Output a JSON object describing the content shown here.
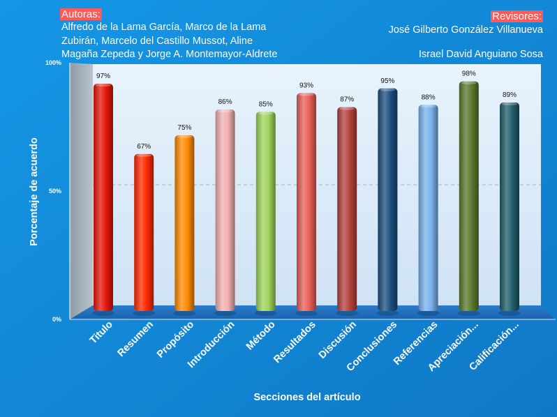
{
  "header": {
    "authors_title": "Autoras:",
    "authors_names": "Alfredo de la Lama García, Marco de la Lama Zubirán, Marcelo del Castillo Mussot, Aline Magaña Zepeda y Jorge A. Montemayor-Aldrete",
    "reviewers_title": "Revisores:",
    "reviewers": [
      "José Gilberto González Villanueva",
      "Israel David Anguiano Sosa"
    ]
  },
  "colors": {
    "background": "#1287d8",
    "back_wall": "#dcecfa",
    "side_wall": "#a8b3bd",
    "floor": "#1e6fc0",
    "bars": [
      "#e3170a",
      "#ff2a00",
      "#ff8a00",
      "#f2b0b0",
      "#9fd45c",
      "#e8605a",
      "#b5413d",
      "#1d4e80",
      "#79b2ec",
      "#5b7a2e",
      "#205e6a"
    ]
  },
  "chart_data": {
    "type": "bar",
    "title": "",
    "xlabel": "Secciones del artículo",
    "ylabel": "Porcentaje de acuerdo",
    "categories": [
      "Titulo",
      "Resumen",
      "Propósito",
      "Introducción",
      "Método",
      "Resultados",
      "Discusión",
      "Conclusiones",
      "Referencias",
      "Apreciación...",
      "Calificación..."
    ],
    "values": [
      97,
      67,
      75,
      86,
      85,
      93,
      87,
      95,
      88,
      98,
      89
    ],
    "value_labels": [
      "97%",
      "67%",
      "75%",
      "86%",
      "85%",
      "93%",
      "87%",
      "95%",
      "88%",
      "98%",
      "89%"
    ],
    "yticks": [
      {
        "value": 0,
        "label": "0%"
      },
      {
        "value": 50,
        "label": "50%"
      },
      {
        "value": 100,
        "label": "100%"
      }
    ],
    "ylim": [
      0,
      100
    ],
    "grid": true,
    "legend": "none"
  }
}
